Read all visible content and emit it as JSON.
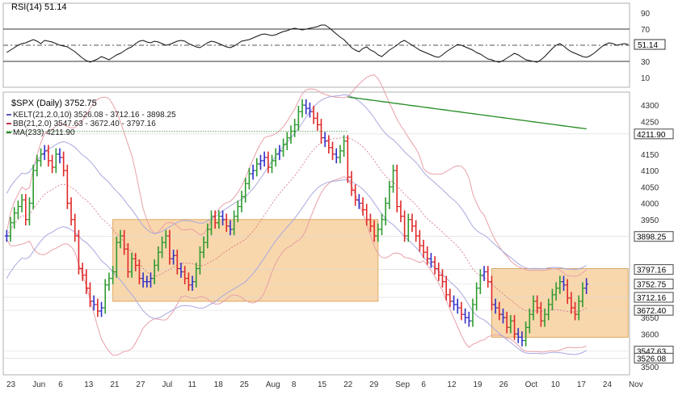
{
  "chart_data": [
    {
      "type": "line",
      "panel": "rsi",
      "title": "RSI(14) 51.14",
      "y_ticks": [
        10,
        30,
        50,
        70,
        90
      ],
      "ylim": [
        0,
        100
      ],
      "last_value_label": "51.14",
      "series": [
        {
          "name": "RSI(14)",
          "x": [
            0,
            1,
            2,
            3,
            4,
            5,
            6,
            7,
            8,
            9,
            10,
            11,
            12,
            13,
            14,
            15,
            16,
            17,
            18,
            19,
            20,
            21,
            22,
            23,
            24,
            25,
            26,
            27,
            28,
            29,
            30,
            31,
            32,
            33,
            34,
            35,
            36,
            37,
            38,
            39,
            40,
            41,
            42,
            43,
            44,
            45,
            46,
            47,
            48,
            49,
            50,
            51,
            52,
            53,
            54,
            55,
            56,
            57,
            58,
            59,
            60,
            61,
            62,
            63,
            64,
            65,
            66,
            67,
            68,
            69,
            70,
            71,
            72,
            73,
            74,
            75,
            76,
            77,
            78,
            79,
            80,
            81,
            82,
            83,
            84,
            85,
            86,
            87,
            88,
            89,
            90,
            91,
            92,
            93,
            94,
            95,
            96,
            97,
            98,
            99,
            100,
            101,
            102,
            103,
            104,
            105,
            106,
            107,
            108,
            109,
            110,
            111,
            112,
            113,
            114,
            115,
            116,
            117,
            118,
            119,
            120,
            121,
            122,
            123,
            124,
            125,
            126,
            127,
            128,
            129,
            130,
            131,
            132,
            133,
            134,
            135,
            136,
            137,
            138,
            139,
            140,
            141,
            142,
            143,
            144,
            145,
            146,
            147,
            148,
            149,
            150,
            151,
            152,
            153,
            154,
            155,
            156,
            157,
            158,
            159,
            160,
            161,
            162,
            163,
            164
          ],
          "values": [
            41,
            44,
            47,
            50,
            52,
            53,
            55,
            57,
            55,
            52,
            56,
            55,
            54,
            52,
            50,
            49,
            48,
            45,
            42,
            38,
            34,
            31,
            29,
            31,
            33,
            36,
            34,
            32,
            35,
            38,
            40,
            43,
            46,
            48,
            52,
            55,
            56,
            54,
            53,
            55,
            54,
            52,
            50,
            51,
            53,
            55,
            56,
            55,
            52,
            50,
            48,
            47,
            50,
            53,
            55,
            54,
            52,
            50,
            48,
            47,
            49,
            52,
            55,
            56,
            57,
            59,
            61,
            63,
            64,
            63,
            62,
            63,
            65,
            67,
            68,
            70,
            71,
            70,
            69,
            70,
            71,
            72,
            73,
            75,
            75,
            72,
            68,
            64,
            60,
            57,
            52,
            47,
            44,
            42,
            46,
            48,
            44,
            42,
            38,
            36,
            40,
            44,
            47,
            50,
            54,
            56,
            53,
            50,
            47,
            44,
            42,
            40,
            38,
            36,
            35,
            38,
            42,
            45,
            48,
            51,
            50,
            48,
            46,
            44,
            41,
            39,
            36,
            33,
            32,
            30,
            29,
            31,
            34,
            37,
            40,
            38,
            35,
            32,
            31,
            30,
            29,
            32,
            36,
            41,
            46,
            50,
            52,
            49,
            45,
            42,
            40,
            38,
            36,
            35,
            37,
            40,
            44,
            48,
            51,
            53,
            52,
            50,
            51,
            52,
            51
          ]
        }
      ]
    },
    {
      "type": "candlestick",
      "panel": "price",
      "title": "$SPX (Daily) 3752.75",
      "legend": [
        {
          "label": "KELT(21,2.0,10) 3526.08 - 3712.16 - 3898.25",
          "color": "#5b5bbd"
        },
        {
          "label": "BB(21,2.0) 3547.63 - 3672.40 - 3797.16",
          "color": "#c0304a"
        },
        {
          "label": "MA(233) 4211.90",
          "color": "#228b22"
        }
      ],
      "x_labels": [
        "23",
        "Jun",
        "6",
        "13",
        "21",
        "27",
        "Jul",
        "11",
        "18",
        "25",
        "Aug",
        "8",
        "15",
        "22",
        "29",
        "Sep",
        "6",
        "12",
        "19",
        "26",
        "Oct",
        "10",
        "17",
        "24",
        "Nov"
      ],
      "y_ticks": [
        3500,
        3550,
        3600,
        3650,
        3700,
        3750,
        3800,
        3850,
        3900,
        3950,
        4000,
        4050,
        4100,
        4150,
        4200,
        4250,
        4300
      ],
      "y_tick_labels": [
        "3500",
        "",
        "3600",
        "3650",
        "",
        "",
        "",
        "",
        "",
        "3950",
        "4000",
        "4050",
        "4100",
        "4150",
        "",
        "4250",
        "4300"
      ],
      "ylim": [
        3480,
        4330
      ],
      "price_labels": [
        {
          "value": 4211.9,
          "label": "4211.90"
        },
        {
          "value": 3898.25,
          "label": "3898.25"
        },
        {
          "value": 3797.16,
          "label": "3797.16"
        },
        {
          "value": 3752.75,
          "label": "3752.75"
        },
        {
          "value": 3712.16,
          "label": "3712.16"
        },
        {
          "value": 3672.4,
          "label": "3672.40"
        },
        {
          "value": 3547.63,
          "label": "3547.63"
        },
        {
          "value": 3526.08,
          "label": "3526.08"
        }
      ],
      "closes": [
        3900,
        3940,
        3970,
        3990,
        4010,
        3950,
        4000,
        4100,
        4130,
        4150,
        4160,
        4130,
        4110,
        4150,
        4140,
        4100,
        4000,
        3950,
        3900,
        3800,
        3780,
        3740,
        3700,
        3690,
        3670,
        3680,
        3750,
        3770,
        3790,
        3880,
        3900,
        3860,
        3790,
        3830,
        3810,
        3770,
        3760,
        3760,
        3770,
        3810,
        3850,
        3880,
        3900,
        3830,
        3840,
        3800,
        3790,
        3770,
        3750,
        3760,
        3800,
        3850,
        3880,
        3920,
        3960,
        3940,
        3960,
        3950,
        3930,
        3920,
        3960,
        3990,
        4020,
        4060,
        4090,
        4100,
        4120,
        4130,
        4140,
        4110,
        4130,
        4150,
        4160,
        4180,
        4200,
        4220,
        4240,
        4280,
        4300,
        4290,
        4280,
        4260,
        4240,
        4200,
        4190,
        4170,
        4150,
        4140,
        4160,
        4190,
        4080,
        4040,
        4010,
        4000,
        3980,
        3950,
        3930,
        3900,
        3920,
        3950,
        4000,
        4050,
        4100,
        3990,
        3960,
        3900,
        3950,
        3930,
        3900,
        3870,
        3850,
        3830,
        3820,
        3800,
        3780,
        3760,
        3720,
        3700,
        3690,
        3680,
        3660,
        3650,
        3640,
        3690,
        3740,
        3780,
        3790,
        3760,
        3690,
        3680,
        3660,
        3650,
        3620,
        3640,
        3600,
        3590,
        3580,
        3620,
        3660,
        3700,
        3680,
        3640,
        3660,
        3690,
        3720,
        3740,
        3760,
        3750,
        3710,
        3680,
        3660,
        3700,
        3740,
        3752.75
      ],
      "shaded_zones": [
        {
          "start_index": 28,
          "end_index": 98,
          "low": 3700,
          "high": 3950
        },
        {
          "start_index": 128,
          "end_index": 164,
          "low": 3590,
          "high": 3800
        }
      ],
      "annotations": [
        {
          "type": "dotted-resistance",
          "value": 4220,
          "start_index": 0,
          "end_index": 90
        }
      ]
    }
  ]
}
